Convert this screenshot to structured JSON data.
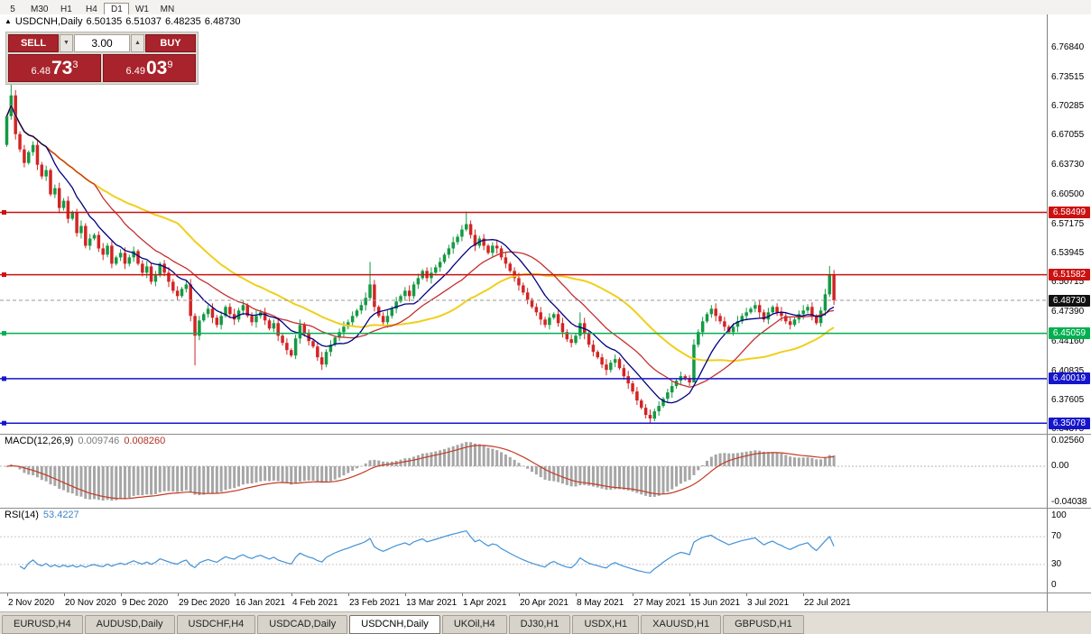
{
  "toolbar": {
    "timeframes": [
      "5",
      "M30",
      "H1",
      "H4",
      "D1",
      "W1",
      "MN"
    ],
    "active": "D1"
  },
  "ticker": {
    "collapse_icon": "▲",
    "symbol": "USDCNH,Daily",
    "open": "6.50135",
    "high": "6.51037",
    "low": "6.48235",
    "close": "6.48730"
  },
  "one_click": {
    "sell_label": "SELL",
    "buy_label": "BUY",
    "volume": "3.00",
    "spin_down_icon": "▼",
    "spin_up_icon": "▲",
    "sell_price": {
      "prefix": "6.48",
      "big": "73",
      "sup": "3"
    },
    "buy_price": {
      "prefix": "6.49",
      "big": "03",
      "sup": "9"
    }
  },
  "price_axis": {
    "labels": [
      "6.76840",
      "6.73515",
      "6.70285",
      "6.67055",
      "6.63730",
      "6.60500",
      "6.57175",
      "6.53945",
      "6.50715",
      "6.47390",
      "6.44160",
      "6.40835",
      "6.37605",
      "6.34375"
    ],
    "bid": {
      "label": "6.48730",
      "value": 6.4873,
      "box_color": "#111111"
    }
  },
  "levels": [
    {
      "value": 6.58499,
      "label": "6.58499",
      "color": "#cc1111"
    },
    {
      "value": 6.51582,
      "label": "6.51582",
      "color": "#cc1111"
    },
    {
      "value": 6.45059,
      "label": "6.45059",
      "color": "#00b050"
    },
    {
      "value": 6.40019,
      "label": "6.40019",
      "color": "#1515cc"
    },
    {
      "value": 6.35078,
      "label": "6.35078",
      "color": "#1515cc"
    }
  ],
  "macd": {
    "name": "MACD(12,26,9)",
    "value1": "0.009746",
    "value2": "0.008260",
    "axis": [
      "0.02560",
      "0.00",
      "-0.04038"
    ]
  },
  "rsi": {
    "name": "RSI(14)",
    "value": "53.4227",
    "axis": [
      "100",
      "70",
      "30",
      "0"
    ]
  },
  "date_axis": {
    "labels": [
      "2 Nov 2020",
      "20 Nov 2020",
      "9 Dec 2020",
      "29 Dec 2020",
      "16 Jan 2021",
      "4 Feb 2021",
      "23 Feb 2021",
      "13 Mar 2021",
      "1 Apr 2021",
      "20 Apr 2021",
      "8 May 2021",
      "27 May 2021",
      "15 Jun 2021",
      "3 Jul 2021",
      "22 Jul 2021"
    ]
  },
  "tabs": {
    "items": [
      "EURUSD,H4",
      "AUDUSD,Daily",
      "USDCHF,H4",
      "USDCAD,Daily",
      "USDCNH,Daily",
      "UKOil,H4",
      "DJ30,H1",
      "USDX,H1",
      "XAUUSD,H1",
      "GBPUSD,H1"
    ],
    "active": "USDCNH,Daily"
  },
  "chart_data": {
    "type": "candlestick",
    "symbol": "USDCNH",
    "timeframe": "Daily",
    "ohlc_current": {
      "open": 6.50135,
      "high": 6.51037,
      "low": 6.48235,
      "close": 6.4873
    },
    "y_range": [
      6.339,
      6.805
    ],
    "up_color": "#149a43",
    "down_color": "#d32424",
    "first_open": 6.66,
    "closes": [
      6.692,
      6.715,
      6.672,
      6.655,
      6.64,
      6.652,
      6.66,
      6.638,
      6.625,
      6.632,
      6.605,
      6.612,
      6.59,
      6.598,
      6.578,
      6.585,
      6.562,
      6.57,
      6.548,
      6.556,
      6.56,
      6.545,
      6.538,
      6.548,
      6.528,
      6.535,
      6.54,
      6.528,
      6.535,
      6.542,
      6.528,
      6.518,
      6.525,
      6.508,
      6.515,
      6.528,
      6.518,
      6.508,
      6.498,
      6.492,
      6.5,
      6.505,
      6.47,
      6.448,
      6.465,
      6.472,
      6.478,
      6.468,
      6.46,
      6.47,
      6.48,
      6.472,
      6.466,
      6.476,
      6.482,
      6.47,
      6.463,
      6.47,
      6.474,
      6.465,
      6.456,
      6.462,
      6.448,
      6.44,
      6.432,
      6.426,
      6.445,
      6.46,
      6.45,
      6.442,
      6.436,
      6.424,
      6.416,
      6.43,
      6.438,
      6.446,
      6.452,
      6.458,
      6.463,
      6.47,
      6.476,
      6.482,
      6.49,
      6.505,
      6.48,
      6.47,
      6.463,
      6.47,
      6.478,
      6.486,
      6.492,
      6.498,
      6.492,
      6.505,
      6.512,
      6.52,
      6.512,
      6.518,
      6.524,
      6.53,
      6.538,
      6.545,
      6.552,
      6.558,
      6.566,
      6.572,
      6.56,
      6.548,
      6.556,
      6.548,
      6.54,
      6.548,
      6.545,
      6.535,
      6.528,
      6.52,
      6.512,
      6.504,
      6.496,
      6.488,
      6.48,
      6.474,
      6.466,
      6.46,
      6.468,
      6.472,
      6.462,
      6.452,
      6.444,
      6.44,
      6.448,
      6.462,
      6.45,
      6.438,
      6.43,
      6.424,
      6.416,
      6.41,
      6.418,
      6.422,
      6.412,
      6.403,
      6.395,
      6.386,
      6.376,
      6.368,
      6.36,
      6.356,
      6.364,
      6.37,
      6.378,
      6.385,
      6.392,
      6.398,
      6.403,
      6.4,
      6.396,
      6.438,
      6.452,
      6.464,
      6.472,
      6.478,
      6.47,
      6.464,
      6.458,
      6.452,
      6.458,
      6.464,
      6.47,
      6.474,
      6.478,
      6.482,
      6.474,
      6.466,
      6.474,
      6.48,
      6.474,
      6.47,
      6.464,
      6.46,
      6.466,
      6.472,
      6.476,
      6.48,
      6.47,
      6.462,
      6.476,
      6.494,
      6.516,
      6.4873
    ],
    "wick_overrides": {
      "1": {
        "h": 6.737
      },
      "43": {
        "l": 6.415
      },
      "83": {
        "h": 6.53
      },
      "105": {
        "h": 6.586
      },
      "131": {
        "h": 6.474
      },
      "147": {
        "l": 6.3515
      },
      "157": {
        "l": 6.398
      },
      "188": {
        "h": 6.5255
      }
    },
    "date_ticks": [
      0,
      13,
      26,
      39,
      52,
      65,
      78,
      91,
      104,
      117,
      130,
      143,
      156,
      169,
      182
    ],
    "moving_averages": [
      {
        "name": "fast",
        "period": 10,
        "color": "#000080",
        "width": 1.3
      },
      {
        "name": "mid",
        "period": 21,
        "color": "#c43030",
        "width": 1.3
      },
      {
        "name": "slow",
        "period": 40,
        "color": "#f0cf1d",
        "width": 2
      }
    ],
    "indicators": {
      "macd": {
        "fast": 12,
        "slow": 26,
        "signal": 9,
        "hist_color": "#a6a6a6",
        "signal_color": "#c23b22",
        "range": [
          -0.0408,
          0.031
        ]
      },
      "rsi": {
        "period": 14,
        "color": "#4191d6",
        "levels": [
          70,
          30
        ],
        "range": [
          0,
          100
        ]
      }
    },
    "levels": [
      6.58499,
      6.51582,
      6.45059,
      6.40019,
      6.35078
    ]
  }
}
